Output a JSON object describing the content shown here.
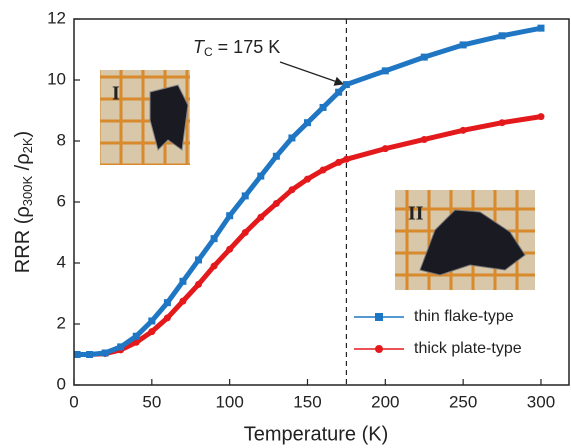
{
  "chart_data": {
    "type": "line",
    "xlabel": "Temperature (K)",
    "ylabel_parts": [
      "RRR (ρ",
      "300K",
      " /ρ",
      "2K",
      ")"
    ],
    "xlim": [
      0,
      318
    ],
    "xticks": [
      0,
      50,
      100,
      150,
      200,
      250,
      300
    ],
    "ylim": [
      0,
      12
    ],
    "yticks": [
      0,
      2,
      4,
      6,
      8,
      10,
      12
    ],
    "vline": 175,
    "annotation_parts": [
      "T",
      "C",
      " = 175 K"
    ],
    "inset_labels": [
      "I",
      "II"
    ],
    "legend": "lower right",
    "x": [
      2,
      10,
      20,
      30,
      40,
      50,
      60,
      70,
      80,
      90,
      100,
      110,
      120,
      130,
      140,
      150,
      160,
      170,
      175,
      200,
      225,
      250,
      275,
      300
    ],
    "series": [
      {
        "name": "thin flake-type",
        "color": "#1f77c4",
        "marker": "square",
        "values": [
          1.0,
          1.0,
          1.05,
          1.25,
          1.6,
          2.1,
          2.7,
          3.4,
          4.1,
          4.8,
          5.55,
          6.2,
          6.85,
          7.5,
          8.1,
          8.6,
          9.1,
          9.6,
          9.85,
          10.3,
          10.75,
          11.15,
          11.45,
          11.7
        ]
      },
      {
        "name": "thick plate-type",
        "color": "#e3191c",
        "marker": "circle",
        "values": [
          1.0,
          1.0,
          1.03,
          1.15,
          1.4,
          1.75,
          2.2,
          2.75,
          3.3,
          3.9,
          4.45,
          5.0,
          5.5,
          5.95,
          6.4,
          6.75,
          7.05,
          7.3,
          7.4,
          7.75,
          8.05,
          8.35,
          8.6,
          8.8
        ]
      }
    ]
  }
}
